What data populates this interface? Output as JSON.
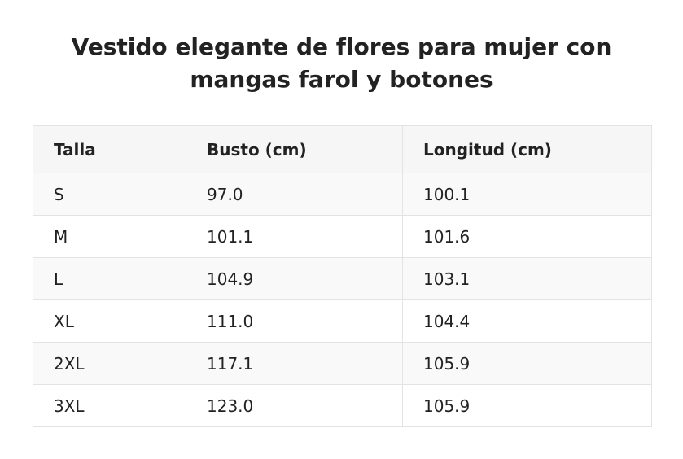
{
  "header": {
    "title": "Vestido elegante de flores para mujer con mangas farol y botones"
  },
  "table": {
    "columns": [
      "Talla",
      "Busto (cm)",
      "Longitud (cm)"
    ],
    "rows": [
      [
        "S",
        "97.0",
        "100.1"
      ],
      [
        "M",
        "101.1",
        "101.6"
      ],
      [
        "L",
        "104.9",
        "103.1"
      ],
      [
        "XL",
        "111.0",
        "104.4"
      ],
      [
        "2XL",
        "117.1",
        "105.9"
      ],
      [
        "3XL",
        "123.0",
        "105.9"
      ]
    ]
  }
}
